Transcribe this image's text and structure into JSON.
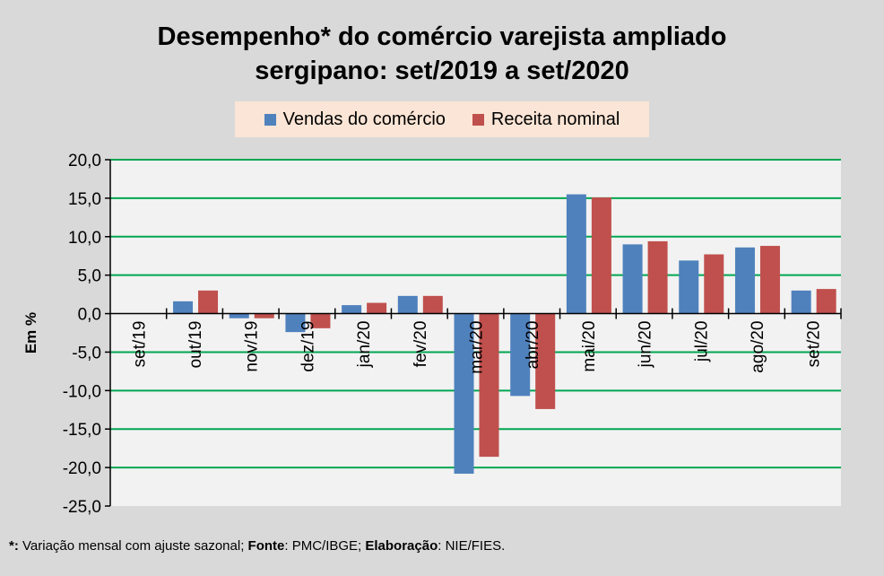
{
  "chart_data": {
    "type": "bar",
    "title": "Desempenho* do comércio varejista ampliado sergipano: set/2019 a set/2020",
    "ylabel": "Em %",
    "ylim": [
      -25,
      20
    ],
    "yticks": [
      "20,0",
      "15,0",
      "10,0",
      "5,0",
      "0,0",
      "-5,0",
      "-10,0",
      "-15,0",
      "-20,0",
      "-25,0"
    ],
    "yticks_values": [
      20,
      15,
      10,
      5,
      0,
      -5,
      -10,
      -15,
      -20,
      -25
    ],
    "grid": true,
    "legend_placement": "top",
    "categories": [
      "set/19",
      "out/19",
      "nov/19",
      "dez/19",
      "jan/20",
      "fev/20",
      "mar/20",
      "abr/20",
      "mai/20",
      "jun/20",
      "jul/20",
      "ago/20",
      "set/20"
    ],
    "series": [
      {
        "name": "Vendas do comércio",
        "color": "#4f81bd",
        "values": [
          0,
          1.6,
          -0.6,
          -2.4,
          1.1,
          2.3,
          -20.8,
          -10.7,
          15.5,
          9.0,
          6.9,
          8.6,
          3.0
        ]
      },
      {
        "name": "Receita nominal",
        "color": "#c0504d",
        "values": [
          0,
          3.0,
          -0.6,
          -1.9,
          1.4,
          2.3,
          -18.6,
          -12.4,
          15.1,
          9.4,
          7.7,
          8.8,
          3.2
        ]
      }
    ]
  },
  "title_lines": [
    "Desempenho* do comércio varejista ampliado",
    "sergipano: set/2019 a set/2020"
  ],
  "footnote": {
    "p1": "*:",
    "p2": " Variação mensal com ajuste sazonal; ",
    "p3": "Fonte",
    "p4": ": PMC/IBGE; ",
    "p5": "Elaboração",
    "p6": ": NIE/FIES."
  },
  "colors": {
    "grid": "#00a651",
    "plot_bg": "#f2f2f2",
    "legend_bg": "#fbe5d6"
  }
}
